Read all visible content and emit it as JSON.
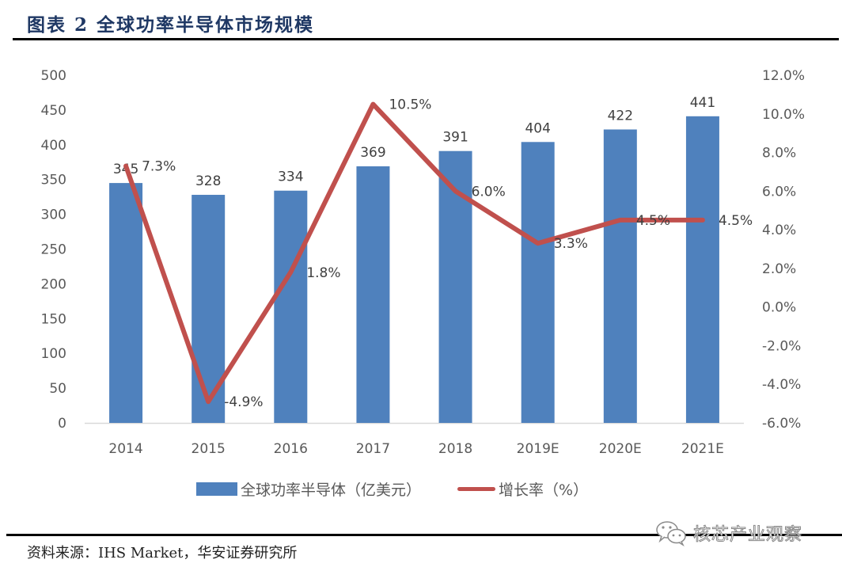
{
  "header": {
    "title": "图表 2 全球功率半导体市场规模"
  },
  "footer": {
    "source": "资料来源：IHS Market，华安证券研究所",
    "watermark": "核芯产业观察",
    "watermark_icon": "wechat-icon"
  },
  "colors": {
    "bar": "#4f81bd",
    "line": "#c0504d",
    "axis_text": "#595959",
    "title": "#1f3864"
  },
  "chart_data": {
    "type": "bar+line",
    "title": "全球功率半导体市场规模",
    "categories": [
      "2014",
      "2015",
      "2016",
      "2017",
      "2018",
      "2019E",
      "2020E",
      "2021E"
    ],
    "series": [
      {
        "name": "全球功率半导体（亿美元）",
        "type": "bar",
        "axis": "left",
        "values": [
          345,
          328,
          334,
          369,
          391,
          404,
          422,
          441
        ],
        "labels": [
          "345",
          "328",
          "334",
          "369",
          "391",
          "404",
          "422",
          "441"
        ]
      },
      {
        "name": "增长率（%）",
        "type": "line",
        "axis": "right",
        "values": [
          7.3,
          -4.9,
          1.8,
          10.5,
          6.0,
          3.3,
          4.5,
          4.5
        ],
        "labels": [
          "7.3%",
          "-4.9%",
          "1.8%",
          "10.5%",
          "6.0%",
          "3.3%",
          "4.5%",
          "4.5%"
        ]
      }
    ],
    "left_axis": {
      "ylim": [
        0,
        500
      ],
      "ticks": [
        "0",
        "50",
        "100",
        "150",
        "200",
        "250",
        "300",
        "350",
        "400",
        "450",
        "500"
      ]
    },
    "right_axis": {
      "ylim": [
        -6,
        12
      ],
      "ticks": [
        "-6.0%",
        "-4.0%",
        "-2.0%",
        "0.0%",
        "2.0%",
        "4.0%",
        "6.0%",
        "8.0%",
        "10.0%",
        "12.0%"
      ]
    },
    "grid": false,
    "legend_position": "bottom",
    "legend": [
      "全球功率半导体（亿美元）",
      "增长率（%）"
    ]
  }
}
